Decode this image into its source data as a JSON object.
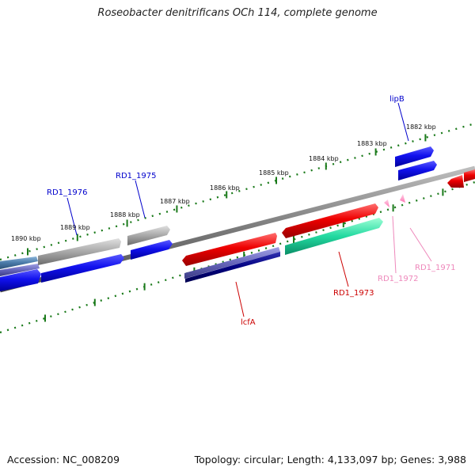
{
  "title": "Roseobacter denitrificans OCh 114, complete genome",
  "footer": {
    "accession": "Accession: NC_008209",
    "stats": "Topology: circular; Length: 4,133,097 bp; Genes: 3,988"
  },
  "scale_labels": [
    "1890 kbp",
    "1889 kbp",
    "1888 kbp",
    "1887 kbp",
    "1886 kbp",
    "1885 kbp",
    "1884 kbp",
    "1883 kbp",
    "1882 kbp"
  ],
  "gene_labels": [
    {
      "name": "RD1_1976",
      "color": "#0000cc"
    },
    {
      "name": "RD1_1975",
      "color": "#0000cc"
    },
    {
      "name": "lipB",
      "color": "#0000cc"
    },
    {
      "name": "lcfA",
      "color": "#cc0000"
    },
    {
      "name": "RD1_1973",
      "color": "#cc0000"
    },
    {
      "name": "RD1_1972",
      "color": "#ee88bb"
    },
    {
      "name": "RD1_1971",
      "color": "#ee88bb"
    }
  ],
  "colors": {
    "blue": "#0000ee",
    "gray": "#a0a0a0",
    "red": "#ee0000",
    "teal": "#22d9a0",
    "lavender": "#6666bb",
    "navy": "#000080",
    "steel": "#4a7aa8",
    "pink": "#ff88bb",
    "tick": "#1a7a1a",
    "backbone": "#7a7a7a"
  }
}
